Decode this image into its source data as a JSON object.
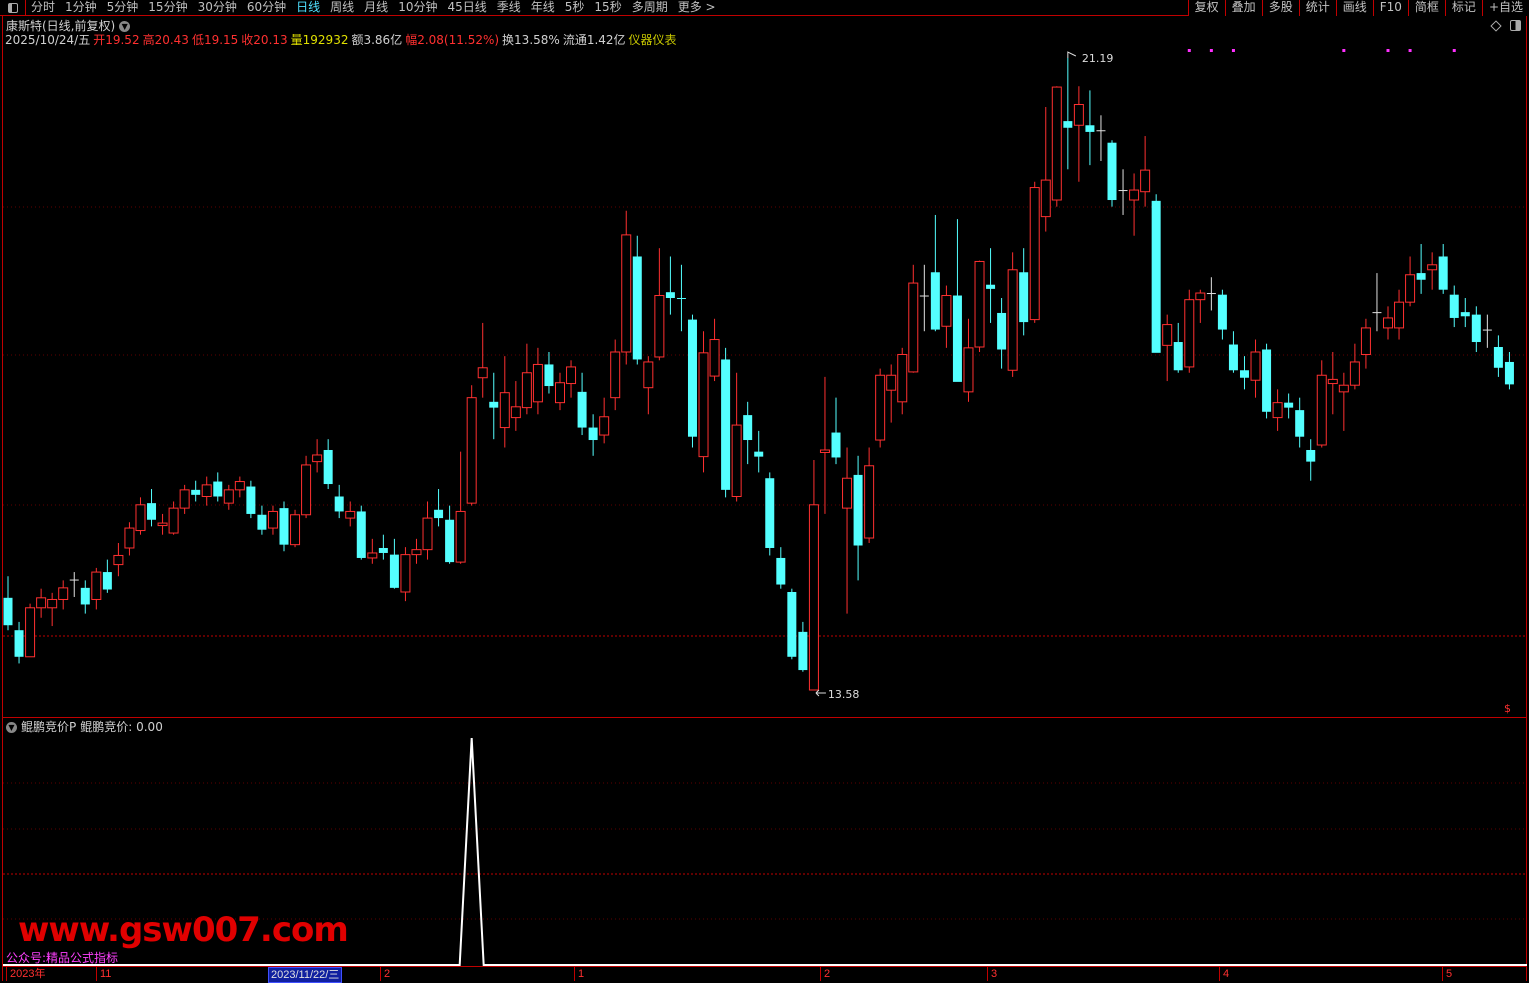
{
  "toolbar": {
    "periods": [
      "分时",
      "1分钟",
      "5分钟",
      "15分钟",
      "30分钟",
      "60分钟",
      "日线",
      "周线",
      "月线",
      "10分钟",
      "45日线",
      "季线",
      "年线",
      "5秒",
      "15秒",
      "多周期",
      "更多 >"
    ],
    "active": "日线",
    "right_buttons": [
      "复权",
      "叠加",
      "多股",
      "统计",
      "画线",
      "F10",
      "简框",
      "标记",
      "+自选"
    ]
  },
  "title": {
    "stock": "康斯特(日线,前复权)"
  },
  "info": {
    "date": "2025/10/24/五",
    "open": "开19.52",
    "high": "高20.43",
    "low": "低19.15",
    "close": "收20.13",
    "volume": "量192932",
    "amount": "额3.86亿",
    "change": "幅2.08(11.52%)",
    "turnover": "换13.58%",
    "float": "流通1.42亿",
    "sector": "仪器仪表"
  },
  "annotations": {
    "max": "21.19",
    "min": "13.58",
    "dollar": "$"
  },
  "indicator": {
    "name": "鲲鹏竞价P",
    "value_label": "鲲鹏竞价: 0.00"
  },
  "xaxis": {
    "labels": [
      "2023年",
      "11",
      "2023/11/22/三",
      "2",
      "1",
      "2",
      "3",
      "4",
      "5"
    ]
  },
  "watermark": {
    "site": "www.gsw007.com",
    "wechat": "公众号:精品公式指标"
  },
  "colors": {
    "up": "#ff3030",
    "down": "#54ffff",
    "neutral": "#909090",
    "grid": "#c00000",
    "marker": "#ff30ff"
  },
  "chart_data": {
    "type": "candlestick",
    "ylim": [
      13.58,
      21.19
    ],
    "candles": [
      [
        14.69,
        14.95,
        14.3,
        14.36
      ],
      [
        14.3,
        14.4,
        13.9,
        13.98
      ],
      [
        13.98,
        14.62,
        13.98,
        14.57
      ],
      [
        14.57,
        14.8,
        14.45,
        14.69
      ],
      [
        14.57,
        14.75,
        14.35,
        14.67
      ],
      [
        14.67,
        14.9,
        14.55,
        14.81
      ],
      [
        14.91,
        15.0,
        14.7,
        14.91
      ],
      [
        14.81,
        14.9,
        14.5,
        14.61
      ],
      [
        14.67,
        15.05,
        14.55,
        15.0
      ],
      [
        15.0,
        15.15,
        14.75,
        14.79
      ],
      [
        15.09,
        15.35,
        14.95,
        15.2
      ],
      [
        15.29,
        15.6,
        15.2,
        15.53
      ],
      [
        15.5,
        15.9,
        15.45,
        15.81
      ],
      [
        15.83,
        16.0,
        15.55,
        15.63
      ],
      [
        15.56,
        15.7,
        15.45,
        15.59
      ],
      [
        15.47,
        15.85,
        15.45,
        15.77
      ],
      [
        15.77,
        16.05,
        15.7,
        15.99
      ],
      [
        15.99,
        16.1,
        15.85,
        15.93
      ],
      [
        15.91,
        16.15,
        15.8,
        16.05
      ],
      [
        16.09,
        16.2,
        15.85,
        15.91
      ],
      [
        15.83,
        16.05,
        15.75,
        15.99
      ],
      [
        15.99,
        16.15,
        15.9,
        16.09
      ],
      [
        16.03,
        16.1,
        15.65,
        15.7
      ],
      [
        15.69,
        15.8,
        15.45,
        15.51
      ],
      [
        15.53,
        15.8,
        15.45,
        15.73
      ],
      [
        15.77,
        15.85,
        15.25,
        15.33
      ],
      [
        15.33,
        15.75,
        15.3,
        15.69
      ],
      [
        15.69,
        16.4,
        15.65,
        16.29
      ],
      [
        16.33,
        16.6,
        16.2,
        16.41
      ],
      [
        16.47,
        16.6,
        16.0,
        16.06
      ],
      [
        15.91,
        16.05,
        15.65,
        15.73
      ],
      [
        15.65,
        15.85,
        15.55,
        15.73
      ],
      [
        15.73,
        15.8,
        15.15,
        15.17
      ],
      [
        15.17,
        15.4,
        15.1,
        15.23
      ],
      [
        15.29,
        15.45,
        15.15,
        15.23
      ],
      [
        15.21,
        15.4,
        14.8,
        14.81
      ],
      [
        14.76,
        15.3,
        14.65,
        15.21
      ],
      [
        15.21,
        15.4,
        15.1,
        15.27
      ],
      [
        15.27,
        15.85,
        15.15,
        15.65
      ],
      [
        15.75,
        16.0,
        15.55,
        15.65
      ],
      [
        15.63,
        15.8,
        15.1,
        15.12
      ],
      [
        15.12,
        16.45,
        15.1,
        15.73
      ],
      [
        15.83,
        17.25,
        15.8,
        17.1
      ],
      [
        17.34,
        18.0,
        17.1,
        17.46
      ],
      [
        17.05,
        17.4,
        16.6,
        16.98
      ],
      [
        16.74,
        17.6,
        16.5,
        17.16
      ],
      [
        16.86,
        17.3,
        16.7,
        16.99
      ],
      [
        16.98,
        17.75,
        16.9,
        17.4
      ],
      [
        17.05,
        17.7,
        16.9,
        17.5
      ],
      [
        17.5,
        17.65,
        17.15,
        17.24
      ],
      [
        17.04,
        17.4,
        16.95,
        17.28
      ],
      [
        17.27,
        17.55,
        17.1,
        17.47
      ],
      [
        17.17,
        17.4,
        16.65,
        16.74
      ],
      [
        16.74,
        16.9,
        16.4,
        16.59
      ],
      [
        16.65,
        17.1,
        16.55,
        16.87
      ],
      [
        17.1,
        17.8,
        16.95,
        17.65
      ],
      [
        17.65,
        19.35,
        17.5,
        19.06
      ],
      [
        18.8,
        19.05,
        17.5,
        17.56
      ],
      [
        17.22,
        17.6,
        16.9,
        17.53
      ],
      [
        17.59,
        18.9,
        17.55,
        18.33
      ],
      [
        18.37,
        18.8,
        18.1,
        18.3
      ],
      [
        18.3,
        18.7,
        17.9,
        18.29
      ],
      [
        18.04,
        18.1,
        16.5,
        16.63
      ],
      [
        16.39,
        17.9,
        16.2,
        17.64
      ],
      [
        17.36,
        18.05,
        17.3,
        17.8
      ],
      [
        17.56,
        17.7,
        15.9,
        15.99
      ],
      [
        15.91,
        17.4,
        15.85,
        16.77
      ],
      [
        16.89,
        17.05,
        16.3,
        16.59
      ],
      [
        16.45,
        16.7,
        16.2,
        16.39
      ],
      [
        16.13,
        16.2,
        15.2,
        15.29
      ],
      [
        15.17,
        15.3,
        14.8,
        14.85
      ],
      [
        14.76,
        14.8,
        13.95,
        13.98
      ],
      [
        14.28,
        14.4,
        13.8,
        13.82
      ],
      [
        13.58,
        16.35,
        13.58,
        15.81
      ],
      [
        16.44,
        17.35,
        15.7,
        16.47
      ],
      [
        16.68,
        17.1,
        16.3,
        16.38
      ],
      [
        15.77,
        16.5,
        14.5,
        16.13
      ],
      [
        16.17,
        16.4,
        14.9,
        15.32
      ],
      [
        15.41,
        16.5,
        15.35,
        16.28
      ],
      [
        16.59,
        17.45,
        16.5,
        17.37
      ],
      [
        17.19,
        17.5,
        16.8,
        17.37
      ],
      [
        17.05,
        17.7,
        16.9,
        17.62
      ],
      [
        17.41,
        18.7,
        17.4,
        18.48
      ],
      [
        18.33,
        18.7,
        17.9,
        18.33
      ],
      [
        18.61,
        19.3,
        17.9,
        17.92
      ],
      [
        17.96,
        18.45,
        17.7,
        18.33
      ],
      [
        18.33,
        19.25,
        17.3,
        17.29
      ],
      [
        17.17,
        18.05,
        17.05,
        17.7
      ],
      [
        17.71,
        18.75,
        17.65,
        18.74
      ],
      [
        18.46,
        18.9,
        18.0,
        18.41
      ],
      [
        18.12,
        18.3,
        17.45,
        17.68
      ],
      [
        17.43,
        18.85,
        17.35,
        18.64
      ],
      [
        18.61,
        18.9,
        17.85,
        18.01
      ],
      [
        18.04,
        19.7,
        18.0,
        19.63
      ],
      [
        19.28,
        20.6,
        19.1,
        19.72
      ],
      [
        19.48,
        20.85,
        19.4,
        20.84
      ],
      [
        20.43,
        21.19,
        19.85,
        20.35
      ],
      [
        20.38,
        20.85,
        19.7,
        20.63
      ],
      [
        20.38,
        20.8,
        19.9,
        20.3
      ],
      [
        20.32,
        20.5,
        19.95,
        20.32
      ],
      [
        20.17,
        20.2,
        19.4,
        19.48
      ],
      [
        19.6,
        19.85,
        19.3,
        19.6
      ],
      [
        19.48,
        19.8,
        19.05,
        19.6
      ],
      [
        19.58,
        20.25,
        19.4,
        19.84
      ],
      [
        19.47,
        19.55,
        17.65,
        17.64
      ],
      [
        17.73,
        18.1,
        17.3,
        17.98
      ],
      [
        17.77,
        18.0,
        17.4,
        17.43
      ],
      [
        17.47,
        18.4,
        17.4,
        18.28
      ],
      [
        18.28,
        18.4,
        18.0,
        18.36
      ],
      [
        18.36,
        18.55,
        18.15,
        18.36
      ],
      [
        18.34,
        18.4,
        17.8,
        17.92
      ],
      [
        17.74,
        17.9,
        17.4,
        17.43
      ],
      [
        17.43,
        17.6,
        17.2,
        17.34
      ],
      [
        17.31,
        17.8,
        17.1,
        17.65
      ],
      [
        17.68,
        17.75,
        16.85,
        16.93
      ],
      [
        16.86,
        17.2,
        16.7,
        17.04
      ],
      [
        17.04,
        17.15,
        16.85,
        16.98
      ],
      [
        16.95,
        17.1,
        16.5,
        16.63
      ],
      [
        16.47,
        16.6,
        16.1,
        16.33
      ],
      [
        16.53,
        17.55,
        16.5,
        17.37
      ],
      [
        17.27,
        17.65,
        16.9,
        17.32
      ],
      [
        17.17,
        17.4,
        16.7,
        17.25
      ],
      [
        17.25,
        17.75,
        17.2,
        17.53
      ],
      [
        17.62,
        18.05,
        17.45,
        17.94
      ],
      [
        18.13,
        18.6,
        17.9,
        18.13
      ],
      [
        17.94,
        18.2,
        17.8,
        18.06
      ],
      [
        17.94,
        18.4,
        17.8,
        18.25
      ],
      [
        18.25,
        18.8,
        18.2,
        18.58
      ],
      [
        18.6,
        18.95,
        18.35,
        18.52
      ],
      [
        18.64,
        18.85,
        18.4,
        18.7
      ],
      [
        18.8,
        18.95,
        18.35,
        18.4
      ],
      [
        18.34,
        18.45,
        17.95,
        18.06
      ],
      [
        18.13,
        18.3,
        17.95,
        18.08
      ],
      [
        18.1,
        18.2,
        17.65,
        17.77
      ],
      [
        17.92,
        18.1,
        17.7,
        17.92
      ],
      [
        17.71,
        17.85,
        17.35,
        17.46
      ],
      [
        17.53,
        17.65,
        17.2,
        17.26
      ]
    ],
    "marker_indices": [
      107,
      109,
      111,
      121,
      125,
      127,
      131
    ],
    "indicator_spike_index": 42,
    "indicator_ylim": [
      0,
      1
    ]
  }
}
